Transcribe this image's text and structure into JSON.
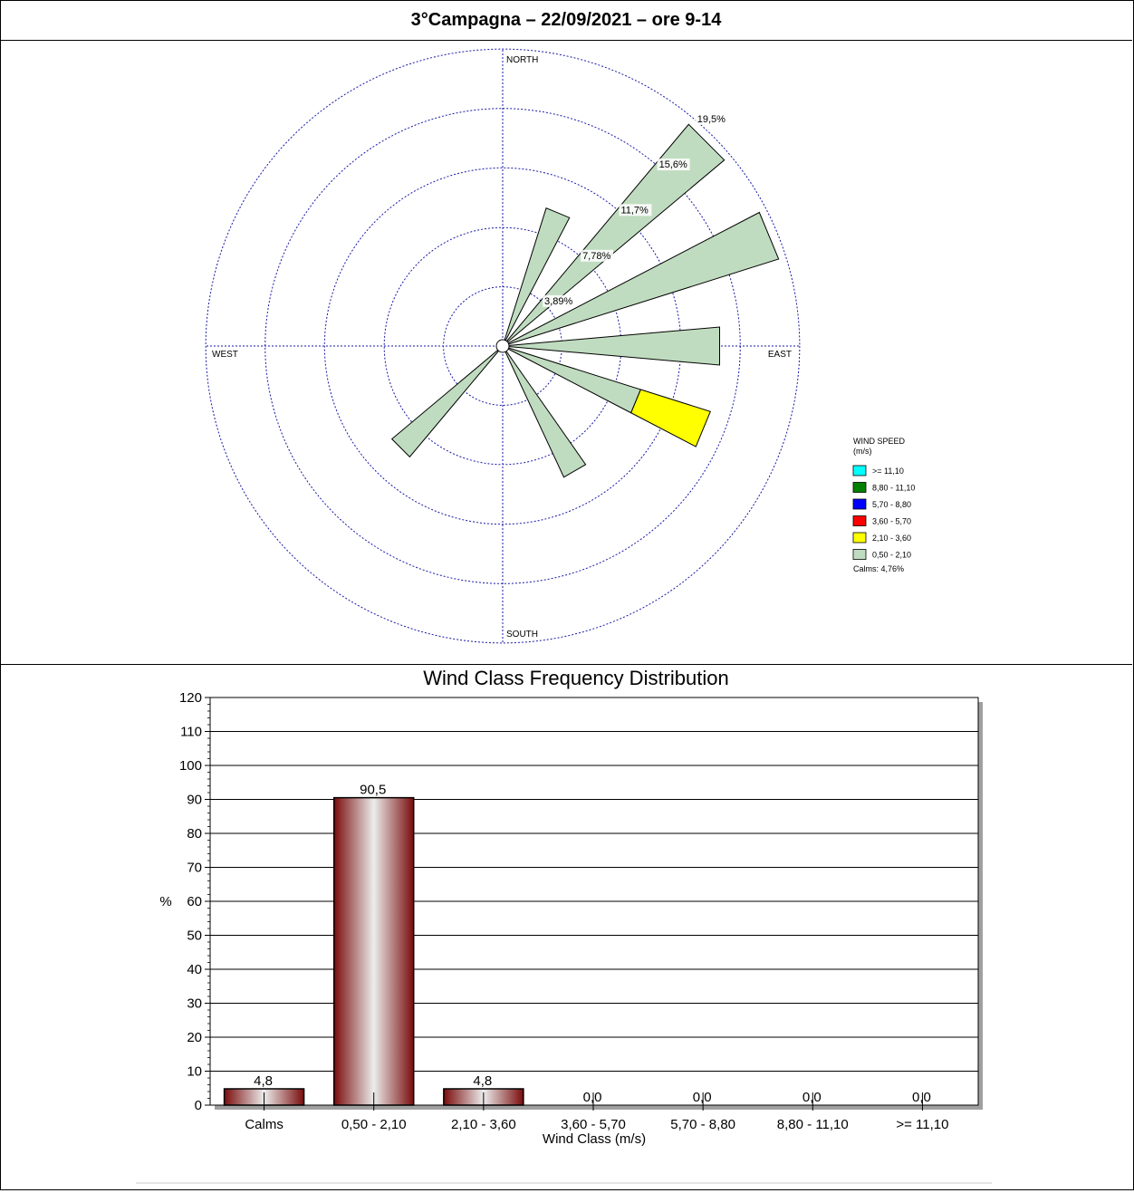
{
  "page_title": "3°Campagna – 22/09/2021 – ore 9-14",
  "chart_data": [
    {
      "type": "wind-rose",
      "directions": [
        "NORTH",
        "EAST",
        "SOUTH",
        "WEST"
      ],
      "rings": [
        "3,89%",
        "7,78%",
        "11,7%",
        "15,6%",
        "19,5%"
      ],
      "ring_values": [
        3.89,
        7.78,
        11.7,
        15.6,
        19.5
      ],
      "legend_title": "WIND SPEED",
      "legend_unit": "(m/s)",
      "legend": [
        {
          "label": ">= 11,10",
          "color": "#00ffff"
        },
        {
          "label": "8,80 - 11,10",
          "color": "#008000"
        },
        {
          "label": "5,70 - 8,80",
          "color": "#0000ff"
        },
        {
          "label": "3,60 - 5,70",
          "color": "#ff0000"
        },
        {
          "label": "2,10 - 3,60",
          "color": "#ffff00"
        },
        {
          "label": "0,50 - 2,10",
          "color": "#c0dcc0"
        }
      ],
      "calms": "Calms: 4,76%",
      "petals": [
        {
          "direction_deg": 22.5,
          "segments": [
            {
              "class": "0,50 - 2,10",
              "value": 9.5
            }
          ]
        },
        {
          "direction_deg": 45,
          "segments": [
            {
              "class": "0,50 - 2,10",
              "value": 19.0
            }
          ]
        },
        {
          "direction_deg": 67.5,
          "segments": [
            {
              "class": "0,50 - 2,10",
              "value": 19.0
            }
          ]
        },
        {
          "direction_deg": 90,
          "segments": [
            {
              "class": "0,50 - 2,10",
              "value": 14.3
            }
          ]
        },
        {
          "direction_deg": 112.5,
          "segments": [
            {
              "class": "0,50 - 2,10",
              "value": 9.5
            },
            {
              "class": "2,10 - 3,60",
              "value": 4.8
            }
          ]
        },
        {
          "direction_deg": 150,
          "segments": [
            {
              "class": "0,50 - 2,10",
              "value": 9.5
            }
          ]
        },
        {
          "direction_deg": 225,
          "segments": [
            {
              "class": "0,50 - 2,10",
              "value": 9.5
            }
          ]
        }
      ]
    },
    {
      "type": "bar",
      "title": "Wind Class Frequency Distribution",
      "xlabel": "Wind Class (m/s)",
      "ylabel": "%",
      "ylim": [
        0,
        120
      ],
      "yticks": [
        0,
        10,
        20,
        30,
        40,
        50,
        60,
        70,
        80,
        90,
        100,
        110,
        120
      ],
      "categories": [
        "Calms",
        "0,50 - 2,10",
        "2,10 - 3,60",
        "3,60 - 5,70",
        "5,70 - 8,80",
        "8,80 - 11,10",
        ">= 11,10"
      ],
      "values": [
        4.8,
        90.5,
        4.8,
        0.0,
        0.0,
        0.0,
        0.0
      ],
      "value_labels": [
        "4,8",
        "90,5",
        "4,8",
        "0,0",
        "0,0",
        "0,0",
        "0,0"
      ],
      "grid": true
    }
  ]
}
